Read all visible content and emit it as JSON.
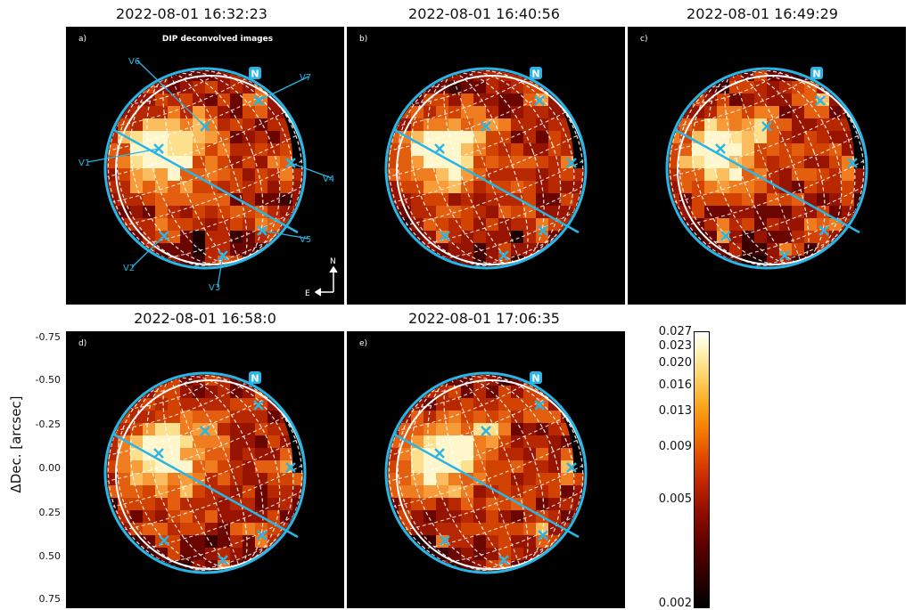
{
  "panels": [
    {
      "id": "a",
      "label": "a)",
      "time": "2022-08-01 16:32:23",
      "subtitle": "DIP deconvolved images"
    },
    {
      "id": "b",
      "label": "b)",
      "time": "2022-08-01 16:40:56"
    },
    {
      "id": "c",
      "label": "c)",
      "time": "2022-08-01 16:49:29"
    },
    {
      "id": "d",
      "label": "d)",
      "time": "2022-08-01 16:58:0"
    },
    {
      "id": "e",
      "label": "e)",
      "time": "2022-08-01 17:06:35"
    }
  ],
  "north_marker": "N",
  "compass": {
    "north": "N",
    "east": "E"
  },
  "volcano_labels": [
    "V1",
    "V2",
    "V3",
    "V4",
    "V5",
    "V6",
    "V7"
  ],
  "y_axis": {
    "label": "ΔDec. [arcsec]",
    "ticks": [
      "-0.75",
      "-0.50",
      "-0.25",
      "0.00",
      "0.25",
      "0.50",
      "0.75"
    ]
  },
  "colorbar": {
    "ticks": [
      "0.027",
      "0.023",
      "0.020",
      "0.016",
      "0.013",
      "0.009",
      "0.005",
      "0.002"
    ]
  },
  "colors": {
    "limb": "#29b6e6",
    "grid": "#ffffff",
    "marker": "#29b6e6",
    "background": "#000000"
  }
}
